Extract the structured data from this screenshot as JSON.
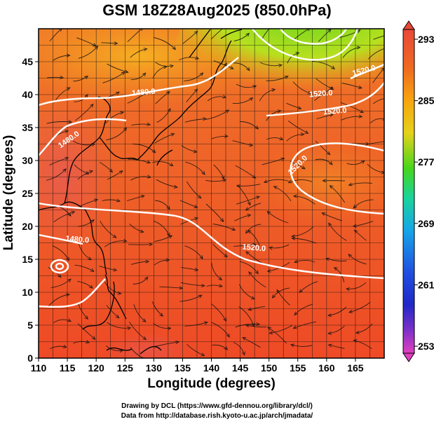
{
  "title": "GSM 18Z28Aug2025 (850.0hPa)",
  "xlabel": "Longitude (degrees)",
  "ylabel": "Latitude  (degrees)",
  "credits": [
    "Drawing by DCL (https://www.gfd-dennou.org/library/dcl/)",
    "Data from http://database.rish.kyoto-u.ac.jp/arch/jmadata/"
  ],
  "map": {
    "lon_range": [
      110,
      170
    ],
    "lat_range": [
      0,
      50
    ],
    "lon_ticks": [
      "110",
      "115",
      "120",
      "125",
      "130",
      "135",
      "140",
      "145",
      "150",
      "155",
      "160",
      "165"
    ],
    "lat_ticks": [
      "0",
      "5",
      "10",
      "15",
      "20",
      "25",
      "30",
      "35",
      "40",
      "45"
    ],
    "field": "temperature (shaded) with geopotential height contours and wind streamlines",
    "contour_labels": [
      "1480.0",
      "1480.0",
      "1520.0",
      "1520.0",
      "1480.0",
      "1520.0",
      "1520.0",
      "1520.0"
    ],
    "grid": true
  },
  "colorbar": {
    "labels": [
      "293",
      "285",
      "277",
      "269",
      "261",
      "253"
    ],
    "colors": {
      "293": "#e84838",
      "285": "#f7a50f",
      "277": "#46d61c",
      "269": "#16a6e8",
      "261": "#2028c8",
      "253": "#e040c0"
    }
  },
  "colors": {
    "land_coast": "#000000",
    "contour": "#ffffff",
    "streamline": "#111111"
  }
}
